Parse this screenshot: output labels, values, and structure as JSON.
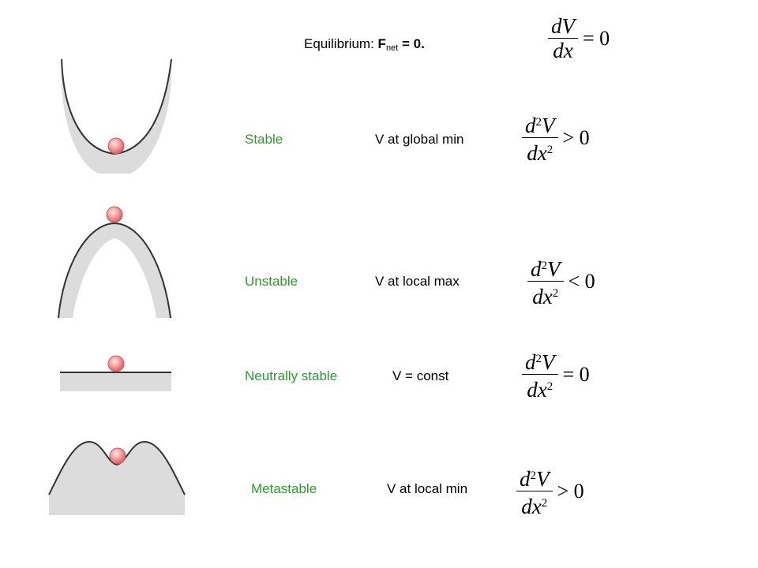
{
  "header": {
    "prefix": "Equilibrium:",
    "force_symbol": "F",
    "force_subscript": "net",
    "equals": "= 0.",
    "eq_num": "dV",
    "eq_den": "dx",
    "eq_rel": "= 0"
  },
  "rows": [
    {
      "label": "Stable",
      "desc": "V at global min",
      "num_d": "d",
      "num_sup": "2",
      "num_v": "V",
      "den_dx": "dx",
      "den_sup": "2",
      "rel": "> 0"
    },
    {
      "label": "Unstable",
      "desc": "V at local max",
      "num_d": "d",
      "num_sup": "2",
      "num_v": "V",
      "den_dx": "dx",
      "den_sup": "2",
      "rel": "< 0"
    },
    {
      "label": "Neutrally stable",
      "desc": "V = const",
      "num_d": "d",
      "num_sup": "2",
      "num_v": "V",
      "den_dx": "dx",
      "den_sup": "2",
      "rel": "= 0"
    },
    {
      "label": "Metastable",
      "desc": "V at local min",
      "num_d": "d",
      "num_sup": "2",
      "num_v": "V",
      "den_dx": "dx",
      "den_sup": "2",
      "rel": "> 0"
    }
  ],
  "colors": {
    "label": "#2e9a2e",
    "ball": "#f08a8a",
    "surface_fill": "#d9d9d9",
    "surface_line": "#333333"
  }
}
